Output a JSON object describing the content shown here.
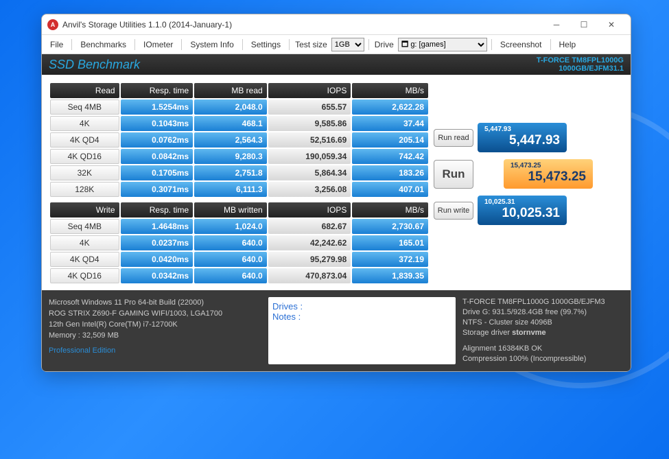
{
  "window": {
    "title": "Anvil's Storage Utilities 1.1.0 (2014-January-1)"
  },
  "menu": {
    "file": "File",
    "benchmarks": "Benchmarks",
    "iometer": "IOmeter",
    "systeminfo": "System Info",
    "settings": "Settings",
    "testsize_label": "Test size",
    "testsize_value": "1GB",
    "drive_label": "Drive",
    "drive_value": "🗖 g: [games]",
    "screenshot": "Screenshot",
    "help": "Help"
  },
  "header": {
    "title": "SSD Benchmark",
    "device_line1": "T-FORCE TM8FPL1000G",
    "device_line2": "1000GB/EJFM31.1"
  },
  "read_table": {
    "title": "Read",
    "cols": [
      "Resp. time",
      "MB read",
      "IOPS",
      "MB/s"
    ],
    "rows": [
      {
        "label": "Seq 4MB",
        "resp": "1.5254ms",
        "mb": "2,048.0",
        "iops": "655.57",
        "mbs": "2,622.28"
      },
      {
        "label": "4K",
        "resp": "0.1043ms",
        "mb": "468.1",
        "iops": "9,585.86",
        "mbs": "37.44"
      },
      {
        "label": "4K QD4",
        "resp": "0.0762ms",
        "mb": "2,564.3",
        "iops": "52,516.69",
        "mbs": "205.14"
      },
      {
        "label": "4K QD16",
        "resp": "0.0842ms",
        "mb": "9,280.3",
        "iops": "190,059.34",
        "mbs": "742.42"
      },
      {
        "label": "32K",
        "resp": "0.1705ms",
        "mb": "2,751.8",
        "iops": "5,864.34",
        "mbs": "183.26"
      },
      {
        "label": "128K",
        "resp": "0.3071ms",
        "mb": "6,111.3",
        "iops": "3,256.08",
        "mbs": "407.01"
      }
    ]
  },
  "write_table": {
    "title": "Write",
    "cols": [
      "Resp. time",
      "MB written",
      "IOPS",
      "MB/s"
    ],
    "rows": [
      {
        "label": "Seq 4MB",
        "resp": "1.4648ms",
        "mb": "1,024.0",
        "iops": "682.67",
        "mbs": "2,730.67"
      },
      {
        "label": "4K",
        "resp": "0.0237ms",
        "mb": "640.0",
        "iops": "42,242.62",
        "mbs": "165.01"
      },
      {
        "label": "4K QD4",
        "resp": "0.0420ms",
        "mb": "640.0",
        "iops": "95,279.98",
        "mbs": "372.19"
      },
      {
        "label": "4K QD16",
        "resp": "0.0342ms",
        "mb": "640.0",
        "iops": "470,873.04",
        "mbs": "1,839.35"
      }
    ]
  },
  "buttons": {
    "run_read": "Run read",
    "run": "Run",
    "run_write": "Run write"
  },
  "scores": {
    "read_small": "5,447.93",
    "read_big": "5,447.93",
    "total_small": "15,473.25",
    "total_big": "15,473.25",
    "write_small": "10,025.31",
    "write_big": "10,025.31"
  },
  "footer": {
    "sys_line1": "Microsoft Windows 11 Pro 64-bit Build (22000)",
    "sys_line2": "ROG STRIX Z690-F GAMING WIFI/1003, LGA1700",
    "sys_line3": "12th Gen Intel(R) Core(TM) i7-12700K",
    "sys_line4": "Memory : 32,509 MB",
    "pro": "Professional Edition",
    "notes_drives": "Drives :",
    "notes_notes": "Notes :",
    "drv_line1": "T-FORCE TM8FPL1000G 1000GB/EJFM3",
    "drv_line2": "Drive G: 931.5/928.4GB free (99.7%)",
    "drv_line3": "NTFS - Cluster size 4096B",
    "drv_line4_a": "Storage driver ",
    "drv_line4_b": "stornvme",
    "drv_line5": "Alignment 16384KB OK",
    "drv_line6": "Compression 100% (Incompressible)"
  },
  "colors": {
    "header_blue": "#29a8e0",
    "cell_blue_grad_top": "#5fb8f0",
    "cell_blue_grad_bot": "#1a7fd4",
    "score_orange_top": "#ffd27a",
    "score_orange_bot": "#ff9a2e"
  }
}
